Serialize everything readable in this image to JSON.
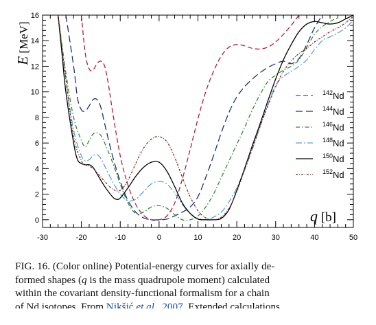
{
  "chart_data": {
    "type": "line",
    "title": "",
    "xlabel": "q [b]",
    "ylabel": "E [MeV]",
    "xlim": [
      -30,
      50
    ],
    "ylim": [
      -0.6,
      16
    ],
    "x_ticks": [
      -30,
      -20,
      -10,
      0,
      10,
      20,
      30,
      40,
      50
    ],
    "y_ticks": [
      0,
      2,
      4,
      6,
      8,
      10,
      12,
      14,
      16
    ],
    "grid": false,
    "legend": "right",
    "series": [
      {
        "name": "142Nd",
        "mass": "142",
        "element": "Nd",
        "color": "#b0203a",
        "dash": "7,4",
        "points": [
          [
            -20,
            16
          ],
          [
            -19,
            13
          ],
          [
            -18,
            11.8
          ],
          [
            -17,
            11.7
          ],
          [
            -16,
            12.2
          ],
          [
            -15,
            12.4
          ],
          [
            -14,
            12
          ],
          [
            -13,
            10.5
          ],
          [
            -12,
            8.5
          ],
          [
            -10,
            5
          ],
          [
            -8,
            2.7
          ],
          [
            -6,
            1.2
          ],
          [
            -4,
            0.35
          ],
          [
            -2,
            0
          ],
          [
            0,
            0
          ],
          [
            2,
            0.3
          ],
          [
            4,
            1.3
          ],
          [
            6,
            3.2
          ],
          [
            8,
            5.5
          ],
          [
            10,
            7.9
          ],
          [
            12,
            10
          ],
          [
            14,
            11.6
          ],
          [
            16,
            12.8
          ],
          [
            18,
            13.5
          ],
          [
            20,
            13.7
          ],
          [
            22,
            13.6
          ],
          [
            24,
            13.4
          ],
          [
            26,
            13.35
          ],
          [
            28,
            13.5
          ],
          [
            30,
            13.9
          ],
          [
            32,
            14.5
          ],
          [
            34,
            15.2
          ],
          [
            36,
            16
          ]
        ]
      },
      {
        "name": "144Nd",
        "mass": "144",
        "element": "Nd",
        "color": "#1c2e78",
        "dash": "10,5",
        "points": [
          [
            -24,
            16
          ],
          [
            -22,
            12
          ],
          [
            -21,
            9.5
          ],
          [
            -20,
            8.6
          ],
          [
            -19,
            8.5
          ],
          [
            -18,
            8.9
          ],
          [
            -17,
            9.4
          ],
          [
            -16,
            9.4
          ],
          [
            -15,
            8.8
          ],
          [
            -14,
            7.5
          ],
          [
            -12,
            5
          ],
          [
            -10,
            3
          ],
          [
            -8,
            1.5
          ],
          [
            -6,
            0.6
          ],
          [
            -4,
            0.15
          ],
          [
            -2,
            0
          ],
          [
            0,
            0
          ],
          [
            2,
            0.05
          ],
          [
            4,
            0.3
          ],
          [
            6,
            0.6
          ],
          [
            8,
            1
          ],
          [
            10,
            1.8
          ],
          [
            12,
            3.3
          ],
          [
            14,
            5
          ],
          [
            16,
            6.8
          ],
          [
            18,
            8.4
          ],
          [
            20,
            9.6
          ],
          [
            22,
            10.4
          ],
          [
            24,
            11
          ],
          [
            26,
            11.5
          ],
          [
            28,
            11.9
          ],
          [
            30,
            12.2
          ],
          [
            32,
            12.4
          ],
          [
            34,
            12.2
          ],
          [
            36,
            12.6
          ],
          [
            38,
            13.7
          ],
          [
            40,
            15
          ],
          [
            42,
            16
          ]
        ]
      },
      {
        "name": "146Nd",
        "mass": "146",
        "element": "Nd",
        "color": "#2e8a2e",
        "dash": "6,3,1.5,3",
        "points": [
          [
            -26,
            16
          ],
          [
            -24,
            11.5
          ],
          [
            -22,
            8
          ],
          [
            -20,
            6.2
          ],
          [
            -19,
            5.7
          ],
          [
            -18,
            6.2
          ],
          [
            -17,
            6.7
          ],
          [
            -16,
            6.8
          ],
          [
            -15,
            6.6
          ],
          [
            -14,
            6
          ],
          [
            -12,
            4.5
          ],
          [
            -10,
            2.8
          ],
          [
            -8,
            1.3
          ],
          [
            -6,
            0.5
          ],
          [
            -4,
            0.6
          ],
          [
            -2,
            1
          ],
          [
            0,
            1.1
          ],
          [
            2,
            0.9
          ],
          [
            4,
            0.4
          ],
          [
            6,
            0
          ],
          [
            8,
            0
          ],
          [
            10,
            0.3
          ],
          [
            12,
            1
          ],
          [
            14,
            2
          ],
          [
            16,
            3.3
          ],
          [
            18,
            4.6
          ],
          [
            20,
            5.9
          ],
          [
            22,
            7.2
          ],
          [
            24,
            8.6
          ],
          [
            26,
            9.8
          ],
          [
            28,
            10.8
          ],
          [
            30,
            11.3
          ],
          [
            32,
            11.7
          ],
          [
            34,
            12
          ],
          [
            36,
            12.5
          ],
          [
            38,
            13.5
          ],
          [
            40,
            14.5
          ],
          [
            42,
            15.1
          ],
          [
            44,
            15.5
          ],
          [
            46,
            15.8
          ]
        ]
      },
      {
        "name": "148Nd",
        "mass": "148",
        "element": "Nd",
        "color": "#5c9fd6",
        "dash": "9,3,2,3",
        "points": [
          [
            -26,
            16
          ],
          [
            -24,
            11
          ],
          [
            -22,
            7
          ],
          [
            -20,
            5
          ],
          [
            -19,
            4.6
          ],
          [
            -18,
            4.7
          ],
          [
            -17,
            5
          ],
          [
            -16,
            5.1
          ],
          [
            -15,
            4.8
          ],
          [
            -14,
            4.2
          ],
          [
            -12,
            3
          ],
          [
            -10,
            2
          ],
          [
            -8,
            1.5
          ],
          [
            -6,
            1.6
          ],
          [
            -4,
            2.2
          ],
          [
            -2,
            2.8
          ],
          [
            0,
            3
          ],
          [
            2,
            2.8
          ],
          [
            4,
            2.1
          ],
          [
            6,
            1.2
          ],
          [
            8,
            0.5
          ],
          [
            10,
            0.1
          ],
          [
            12,
            0
          ],
          [
            14,
            0.2
          ],
          [
            16,
            0.6
          ],
          [
            18,
            1.4
          ],
          [
            20,
            2.5
          ],
          [
            22,
            3.9
          ],
          [
            24,
            5.5
          ],
          [
            26,
            7.3
          ],
          [
            28,
            9
          ],
          [
            30,
            10.5
          ],
          [
            32,
            11.2
          ],
          [
            34,
            11.6
          ],
          [
            36,
            12
          ],
          [
            38,
            12.5
          ],
          [
            40,
            13.3
          ],
          [
            42,
            14
          ],
          [
            44,
            14.3
          ],
          [
            46,
            14.6
          ],
          [
            48,
            15
          ],
          [
            50,
            15.6
          ]
        ]
      },
      {
        "name": "150Nd",
        "mass": "150",
        "element": "Nd",
        "color": "#000000",
        "dash": "",
        "points": [
          [
            -26,
            16
          ],
          [
            -25,
            13
          ],
          [
            -24,
            10
          ],
          [
            -22,
            6
          ],
          [
            -21,
            4.7
          ],
          [
            -20,
            4.4
          ],
          [
            -19,
            4.3
          ],
          [
            -18,
            4.3
          ],
          [
            -17,
            4.1
          ],
          [
            -16,
            3.6
          ],
          [
            -14,
            2.6
          ],
          [
            -12,
            1.8
          ],
          [
            -11,
            1.6
          ],
          [
            -10,
            1.7
          ],
          [
            -8,
            2.5
          ],
          [
            -6,
            3.4
          ],
          [
            -4,
            4.1
          ],
          [
            -2,
            4.5
          ],
          [
            0,
            4.5
          ],
          [
            2,
            3.8
          ],
          [
            4,
            2.6
          ],
          [
            6,
            1.3
          ],
          [
            8,
            0.5
          ],
          [
            10,
            0.05
          ],
          [
            12,
            0
          ],
          [
            14,
            0
          ],
          [
            16,
            0.1
          ],
          [
            18,
            0.8
          ],
          [
            20,
            2.3
          ],
          [
            22,
            4
          ],
          [
            24,
            5.8
          ],
          [
            26,
            7.5
          ],
          [
            28,
            9.3
          ],
          [
            30,
            11
          ],
          [
            32,
            12.5
          ],
          [
            34,
            13.7
          ],
          [
            36,
            14.7
          ],
          [
            38,
            15.3
          ],
          [
            40,
            15.5
          ],
          [
            42,
            15.4
          ],
          [
            44,
            15.3
          ],
          [
            46,
            15.4
          ],
          [
            48,
            15.7
          ],
          [
            50,
            16
          ]
        ]
      },
      {
        "name": "152Nd",
        "mass": "152",
        "element": "Nd",
        "color": "#7a2a1e",
        "dash": "3,2,1,2",
        "points": [
          [
            -26,
            16
          ],
          [
            -24,
            11
          ],
          [
            -22,
            6.5
          ],
          [
            -20,
            4.6
          ],
          [
            -19,
            4.3
          ],
          [
            -18,
            4.2
          ],
          [
            -17,
            4
          ],
          [
            -16,
            3.7
          ],
          [
            -14,
            3
          ],
          [
            -12,
            2.4
          ],
          [
            -10,
            2.3
          ],
          [
            -8,
            3.1
          ],
          [
            -6,
            4.4
          ],
          [
            -4,
            5.6
          ],
          [
            -2,
            6.3
          ],
          [
            0,
            6.5
          ],
          [
            2,
            6.1
          ],
          [
            4,
            4.9
          ],
          [
            6,
            3.3
          ],
          [
            8,
            1.8
          ],
          [
            10,
            0.7
          ],
          [
            12,
            0.15
          ],
          [
            14,
            0
          ],
          [
            16,
            0.2
          ],
          [
            18,
            0.9
          ],
          [
            20,
            2.2
          ],
          [
            22,
            3.9
          ],
          [
            24,
            5.6
          ],
          [
            26,
            7.3
          ],
          [
            28,
            8.9
          ],
          [
            30,
            10.4
          ],
          [
            32,
            11.6
          ],
          [
            34,
            12.4
          ],
          [
            36,
            13
          ],
          [
            38,
            13.4
          ],
          [
            40,
            13.9
          ],
          [
            42,
            14.3
          ],
          [
            44,
            14.7
          ],
          [
            46,
            15
          ],
          [
            48,
            15.4
          ],
          [
            50,
            15.9
          ]
        ]
      }
    ]
  },
  "caption": {
    "lines": [
      [
        "FIG. 16. (Color online) Potential-energy curves for axially de-"
      ],
      [
        "formed shapes (",
        "q",
        " is the mass quadrupole moment) calculated"
      ],
      [
        "within the covariant density-functional formalism for a chain"
      ],
      [
        "of Nd isotopes. From ",
        "Nikšić ",
        "et al.",
        ", 2007",
        ". Extended calculations"
      ]
    ]
  }
}
